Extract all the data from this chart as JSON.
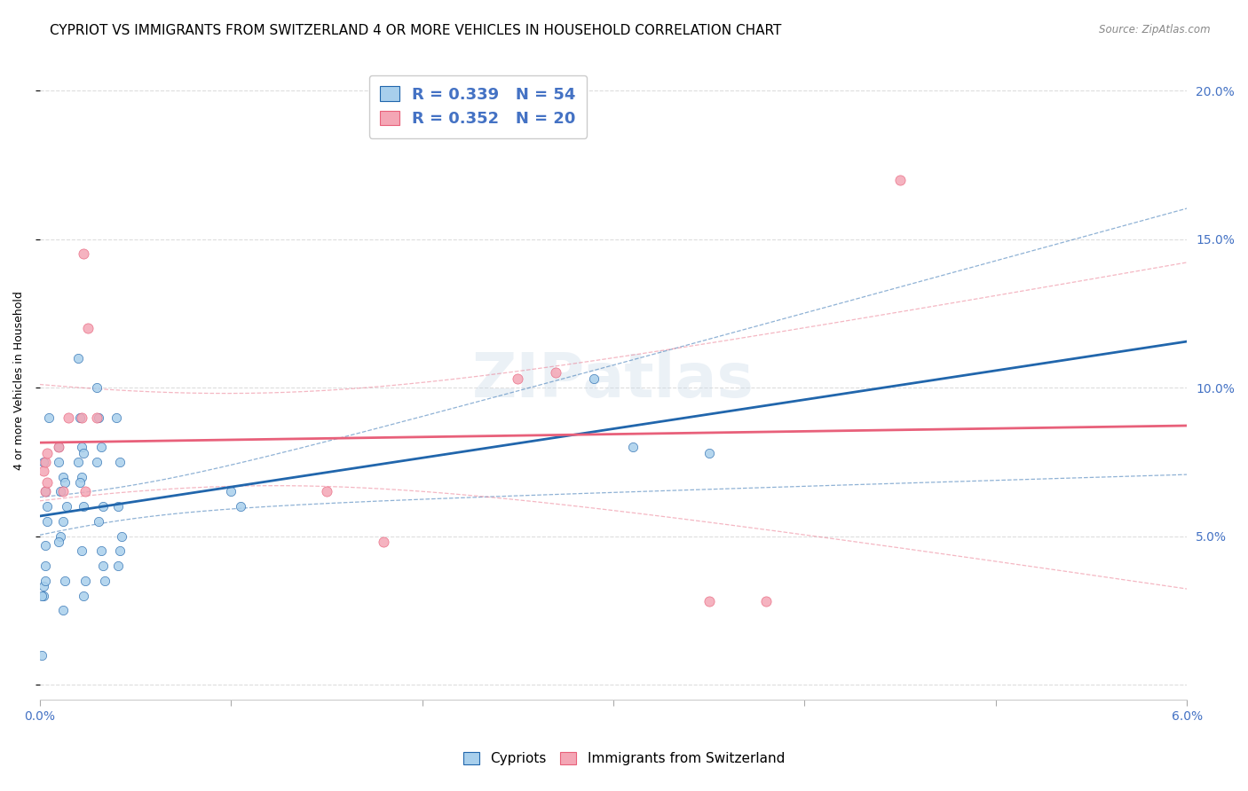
{
  "title": "CYPRIOT VS IMMIGRANTS FROM SWITZERLAND 4 OR MORE VEHICLES IN HOUSEHOLD CORRELATION CHART",
  "source": "Source: ZipAtlas.com",
  "ylabel": "4 or more Vehicles in Household",
  "xlabel": "",
  "xlim": [
    0.0,
    0.06
  ],
  "ylim": [
    -0.005,
    0.21
  ],
  "xticks": [
    0.0,
    0.01,
    0.02,
    0.03,
    0.04,
    0.05,
    0.06
  ],
  "xticklabels": [
    "0.0%",
    "",
    "",
    "",
    "",
    "",
    "6.0%"
  ],
  "yticks": [
    0.0,
    0.05,
    0.1,
    0.15,
    0.2
  ],
  "yticklabels": [
    "",
    "5.0%",
    "10.0%",
    "15.0%",
    "20.0%"
  ],
  "legend_R1": "0.339",
  "legend_N1": "54",
  "legend_R2": "0.352",
  "legend_N2": "20",
  "cypriot_color": "#A8CFEC",
  "immigrant_color": "#F4A6B5",
  "trend_cypriot_color": "#2166AC",
  "trend_immigrant_color": "#E8607A",
  "watermark": "ZIPatlas",
  "cypriot_scatter": [
    [
      0.0002,
      0.033
    ],
    [
      0.0003,
      0.047
    ],
    [
      0.0004,
      0.06
    ],
    [
      0.0002,
      0.075
    ],
    [
      0.0003,
      0.035
    ],
    [
      0.0004,
      0.055
    ],
    [
      0.0002,
      0.03
    ],
    [
      0.0003,
      0.065
    ],
    [
      0.0005,
      0.09
    ],
    [
      0.0003,
      0.04
    ],
    [
      0.001,
      0.075
    ],
    [
      0.0012,
      0.07
    ],
    [
      0.0011,
      0.065
    ],
    [
      0.001,
      0.08
    ],
    [
      0.0013,
      0.068
    ],
    [
      0.0012,
      0.055
    ],
    [
      0.0011,
      0.05
    ],
    [
      0.001,
      0.048
    ],
    [
      0.0014,
      0.06
    ],
    [
      0.0013,
      0.035
    ],
    [
      0.0012,
      0.025
    ],
    [
      0.002,
      0.11
    ],
    [
      0.0022,
      0.08
    ],
    [
      0.0021,
      0.09
    ],
    [
      0.0023,
      0.078
    ],
    [
      0.0022,
      0.07
    ],
    [
      0.0021,
      0.068
    ],
    [
      0.002,
      0.075
    ],
    [
      0.0023,
      0.06
    ],
    [
      0.0022,
      0.045
    ],
    [
      0.0024,
      0.035
    ],
    [
      0.0023,
      0.03
    ],
    [
      0.003,
      0.1
    ],
    [
      0.0031,
      0.09
    ],
    [
      0.0032,
      0.08
    ],
    [
      0.003,
      0.075
    ],
    [
      0.0033,
      0.06
    ],
    [
      0.0031,
      0.055
    ],
    [
      0.0032,
      0.045
    ],
    [
      0.0033,
      0.04
    ],
    [
      0.0034,
      0.035
    ],
    [
      0.004,
      0.09
    ],
    [
      0.0042,
      0.075
    ],
    [
      0.0041,
      0.06
    ],
    [
      0.0043,
      0.05
    ],
    [
      0.0042,
      0.045
    ],
    [
      0.0041,
      0.04
    ],
    [
      0.01,
      0.065
    ],
    [
      0.0105,
      0.06
    ],
    [
      0.029,
      0.103
    ],
    [
      0.031,
      0.08
    ],
    [
      0.035,
      0.078
    ],
    [
      0.0001,
      0.01
    ],
    [
      0.0001,
      0.03
    ]
  ],
  "immigrant_scatter": [
    [
      0.0003,
      0.065
    ],
    [
      0.0004,
      0.068
    ],
    [
      0.0002,
      0.072
    ],
    [
      0.0003,
      0.075
    ],
    [
      0.0004,
      0.078
    ],
    [
      0.001,
      0.08
    ],
    [
      0.0012,
      0.065
    ],
    [
      0.0015,
      0.09
    ],
    [
      0.0023,
      0.145
    ],
    [
      0.0025,
      0.12
    ],
    [
      0.0022,
      0.09
    ],
    [
      0.0024,
      0.065
    ],
    [
      0.003,
      0.09
    ],
    [
      0.015,
      0.065
    ],
    [
      0.018,
      0.048
    ],
    [
      0.025,
      0.103
    ],
    [
      0.027,
      0.105
    ],
    [
      0.035,
      0.028
    ],
    [
      0.038,
      0.028
    ],
    [
      0.045,
      0.17
    ]
  ],
  "background_color": "#FFFFFF",
  "grid_color": "#DDDDDD",
  "tick_color": "#4472C4",
  "title_fontsize": 11,
  "axis_label_fontsize": 9,
  "tick_fontsize": 10
}
